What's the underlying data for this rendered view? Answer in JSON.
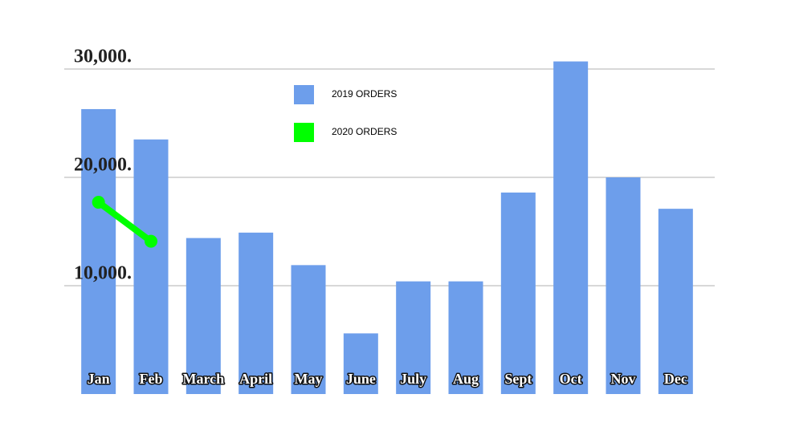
{
  "chart_data": {
    "type": "bar",
    "categories": [
      "Jan",
      "Feb",
      "March",
      "April",
      "May",
      "June",
      "July",
      "Aug",
      "Sept",
      "Oct",
      "Nov",
      "Dec"
    ],
    "series": [
      {
        "name": "2019 ORDERS",
        "type": "bar",
        "color": "#6d9eeb",
        "values": [
          26300,
          23500,
          14400,
          14900,
          11900,
          5600,
          10400,
          10400,
          18600,
          30700,
          20000,
          17100
        ]
      },
      {
        "name": "2020 ORDERS",
        "type": "line",
        "color": "#00ff00",
        "values": [
          17700,
          14100,
          null,
          null,
          null,
          null,
          null,
          null,
          null,
          null,
          null,
          null
        ]
      }
    ],
    "ylim": [
      0,
      30000
    ],
    "yticks": [
      {
        "value": 10000,
        "label": "10,000."
      },
      {
        "value": 20000,
        "label": "20,000."
      },
      {
        "value": 30000,
        "label": "30,000."
      }
    ],
    "grid": true
  }
}
